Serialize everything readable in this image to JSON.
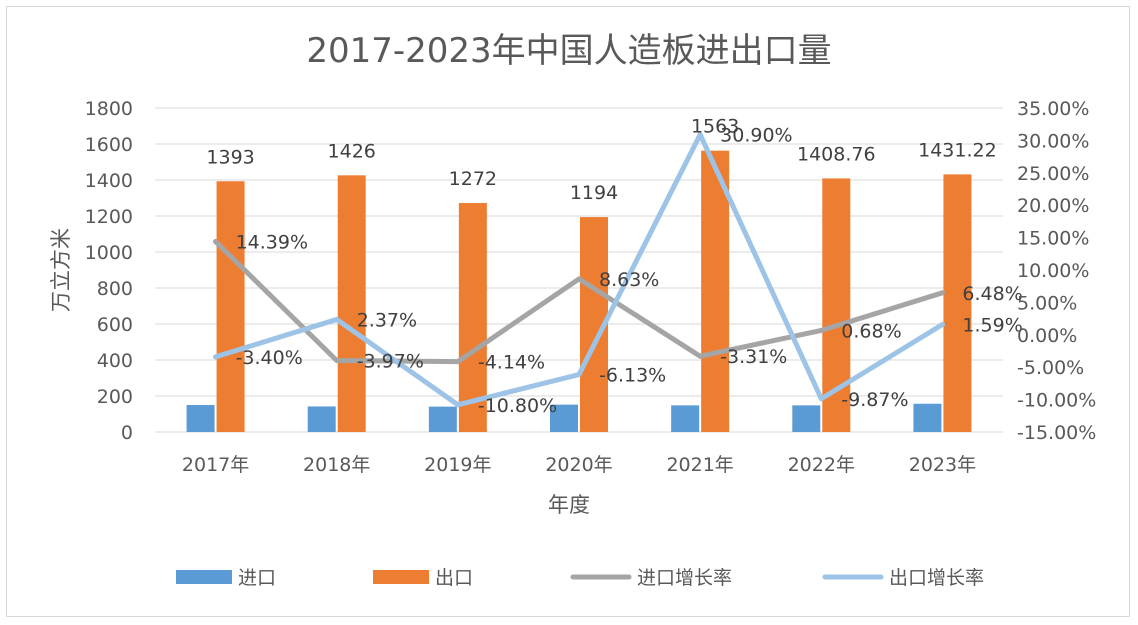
{
  "chart_data": {
    "type": "bar",
    "title": "2017-2023年中国人造板进出口量",
    "xlabel": "年度",
    "ylabel": "万立方米",
    "categories": [
      "2017年",
      "2018年",
      "2019年",
      "2020年",
      "2021年",
      "2022年",
      "2023年"
    ],
    "ylim": [
      0,
      1800
    ],
    "y_ticks": [
      "0",
      "200",
      "400",
      "600",
      "800",
      "1000",
      "1200",
      "1400",
      "1600",
      "1800"
    ],
    "y2lim": [
      -15,
      35
    ],
    "y2_ticks": [
      "-15.00%",
      "-10.00%",
      "-5.00%",
      "0.00%",
      "5.00%",
      "10.00%",
      "15.00%",
      "20.00%",
      "25.00%",
      "30.00%",
      "35.00%"
    ],
    "grid": true,
    "legend_position": "bottom",
    "series": [
      {
        "name": "进口",
        "type": "bar",
        "axis": "left",
        "color": "#5b9bd5",
        "values": [
          150,
          142,
          141,
          152,
          148,
          148,
          157
        ]
      },
      {
        "name": "出口",
        "type": "bar",
        "axis": "left",
        "color": "#ed7d31",
        "values": [
          1393,
          1426,
          1272,
          1194,
          1563,
          1408.76,
          1431.22
        ],
        "labels": [
          "1393",
          "1426",
          "1272",
          "1194",
          "1563",
          "1408.76",
          "1431.22"
        ]
      },
      {
        "name": "进口增长率",
        "type": "line",
        "axis": "right",
        "color": "#a5a5a5",
        "values": [
          14.39,
          -3.97,
          -4.14,
          8.63,
          -3.31,
          0.68,
          6.48
        ],
        "labels": [
          "14.39%",
          "-3.97%",
          "-4.14%",
          "8.63%",
          "-3.31%",
          "0.68%",
          "6.48%"
        ]
      },
      {
        "name": "出口增长率",
        "type": "line",
        "axis": "right",
        "color": "#9dc3e6",
        "values": [
          -3.4,
          2.37,
          -10.8,
          -6.13,
          30.9,
          -9.87,
          1.59
        ],
        "labels": [
          "-3.40%",
          "2.37%",
          "-10.80%",
          "-6.13%",
          "30.90%",
          "-9.87%",
          "1.59%"
        ]
      }
    ]
  }
}
